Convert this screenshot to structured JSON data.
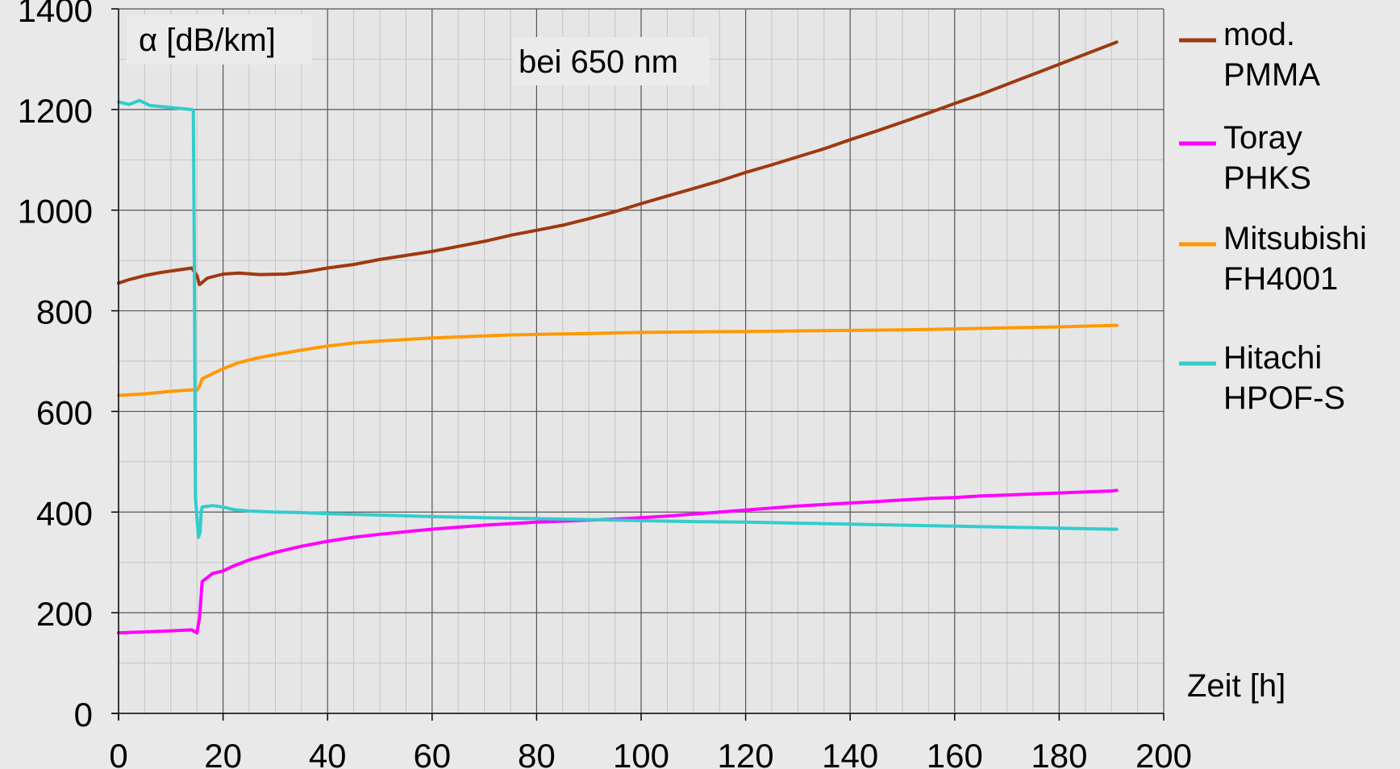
{
  "chart_data": {
    "type": "line",
    "ylabel": "α [dB/km]",
    "xlabel": "Zeit [h]",
    "annotation": "bei 650 nm",
    "xlim": [
      0,
      200
    ],
    "ylim": [
      0,
      1400
    ],
    "x_ticks": [
      0,
      20,
      40,
      60,
      80,
      100,
      120,
      140,
      160,
      180,
      200
    ],
    "x_tick_labels": [
      "0",
      "20",
      "40",
      "60",
      "80",
      "100",
      "120",
      "140",
      "160",
      "180",
      "200"
    ],
    "y_ticks": [
      0,
      200,
      400,
      600,
      800,
      1000,
      1200,
      1400
    ],
    "y_tick_labels": [
      "0",
      "200",
      "400",
      "600",
      "800",
      "1000",
      "1200",
      "1400"
    ],
    "grid": true,
    "legend_position": "right",
    "series": [
      {
        "name_lines": [
          "mod.",
          "PMMA"
        ],
        "color": "#a0380f",
        "points": [
          [
            0,
            855
          ],
          [
            2,
            862
          ],
          [
            5,
            870
          ],
          [
            8,
            876
          ],
          [
            12,
            882
          ],
          [
            14,
            885
          ],
          [
            15,
            870
          ],
          [
            15.5,
            852
          ],
          [
            17,
            865
          ],
          [
            20,
            873
          ],
          [
            23,
            875
          ],
          [
            27,
            872
          ],
          [
            32,
            873
          ],
          [
            36,
            878
          ],
          [
            40,
            885
          ],
          [
            45,
            892
          ],
          [
            50,
            902
          ],
          [
            55,
            910
          ],
          [
            60,
            918
          ],
          [
            65,
            928
          ],
          [
            70,
            938
          ],
          [
            75,
            950
          ],
          [
            80,
            960
          ],
          [
            85,
            970
          ],
          [
            90,
            983
          ],
          [
            95,
            997
          ],
          [
            100,
            1013
          ],
          [
            105,
            1028
          ],
          [
            110,
            1043
          ],
          [
            115,
            1058
          ],
          [
            120,
            1075
          ],
          [
            125,
            1090
          ],
          [
            130,
            1106
          ],
          [
            135,
            1122
          ],
          [
            140,
            1140
          ],
          [
            145,
            1157
          ],
          [
            150,
            1175
          ],
          [
            155,
            1193
          ],
          [
            160,
            1212
          ],
          [
            165,
            1230
          ],
          [
            170,
            1250
          ],
          [
            175,
            1270
          ],
          [
            180,
            1290
          ],
          [
            185,
            1310
          ],
          [
            190,
            1330
          ],
          [
            191,
            1334
          ]
        ]
      },
      {
        "name_lines": [
          "Toray",
          "PHKS"
        ],
        "color": "#ff00ff",
        "points": [
          [
            0,
            160
          ],
          [
            5,
            162
          ],
          [
            10,
            164
          ],
          [
            14,
            166
          ],
          [
            15,
            160
          ],
          [
            15.5,
            190
          ],
          [
            16,
            262
          ],
          [
            17,
            270
          ],
          [
            18,
            278
          ],
          [
            20,
            283
          ],
          [
            22,
            293
          ],
          [
            25,
            305
          ],
          [
            30,
            320
          ],
          [
            35,
            332
          ],
          [
            40,
            342
          ],
          [
            45,
            350
          ],
          [
            50,
            356
          ],
          [
            55,
            361
          ],
          [
            60,
            366
          ],
          [
            65,
            370
          ],
          [
            70,
            374
          ],
          [
            75,
            377
          ],
          [
            80,
            380
          ],
          [
            85,
            382
          ],
          [
            90,
            384
          ],
          [
            95,
            386
          ],
          [
            100,
            389
          ],
          [
            105,
            392
          ],
          [
            110,
            396
          ],
          [
            115,
            400
          ],
          [
            120,
            404
          ],
          [
            125,
            408
          ],
          [
            130,
            412
          ],
          [
            135,
            415
          ],
          [
            140,
            418
          ],
          [
            145,
            421
          ],
          [
            150,
            424
          ],
          [
            155,
            427
          ],
          [
            160,
            429
          ],
          [
            165,
            432
          ],
          [
            170,
            434
          ],
          [
            175,
            436
          ],
          [
            180,
            438
          ],
          [
            185,
            440
          ],
          [
            190,
            442
          ],
          [
            191,
            443
          ]
        ]
      },
      {
        "name_lines": [
          "Mitsubishi",
          "FH4001"
        ],
        "color": "#ff9900",
        "points": [
          [
            0,
            632
          ],
          [
            5,
            635
          ],
          [
            10,
            640
          ],
          [
            14,
            643
          ],
          [
            15,
            642
          ],
          [
            15.5,
            650
          ],
          [
            16,
            665
          ],
          [
            18,
            675
          ],
          [
            20,
            685
          ],
          [
            23,
            697
          ],
          [
            26,
            705
          ],
          [
            30,
            713
          ],
          [
            35,
            722
          ],
          [
            40,
            730
          ],
          [
            45,
            736
          ],
          [
            50,
            740
          ],
          [
            55,
            743
          ],
          [
            60,
            746
          ],
          [
            65,
            748
          ],
          [
            70,
            750
          ],
          [
            75,
            752
          ],
          [
            80,
            753
          ],
          [
            85,
            754
          ],
          [
            90,
            755
          ],
          [
            95,
            756
          ],
          [
            100,
            757
          ],
          [
            110,
            758
          ],
          [
            120,
            759
          ],
          [
            130,
            760
          ],
          [
            140,
            761
          ],
          [
            150,
            762
          ],
          [
            160,
            764
          ],
          [
            170,
            766
          ],
          [
            180,
            768
          ],
          [
            190,
            771
          ],
          [
            191,
            771
          ]
        ]
      },
      {
        "name_lines": [
          "Hitachi",
          "HPOF-S"
        ],
        "color": "#33cccc",
        "points": [
          [
            0,
            1215
          ],
          [
            2,
            1210
          ],
          [
            4,
            1218
          ],
          [
            6,
            1208
          ],
          [
            8,
            1206
          ],
          [
            10,
            1204
          ],
          [
            12,
            1202
          ],
          [
            14,
            1200
          ],
          [
            14.3,
            1198
          ],
          [
            14.5,
            900
          ],
          [
            14.7,
            430
          ],
          [
            15,
            390
          ],
          [
            15.3,
            350
          ],
          [
            15.6,
            360
          ],
          [
            15.8,
            400
          ],
          [
            16,
            410
          ],
          [
            18,
            413
          ],
          [
            20,
            410
          ],
          [
            22,
            405
          ],
          [
            25,
            402
          ],
          [
            30,
            400
          ],
          [
            35,
            399
          ],
          [
            40,
            397
          ],
          [
            50,
            394
          ],
          [
            60,
            391
          ],
          [
            70,
            389
          ],
          [
            80,
            387
          ],
          [
            90,
            385
          ],
          [
            100,
            383
          ],
          [
            110,
            381
          ],
          [
            120,
            380
          ],
          [
            130,
            378
          ],
          [
            140,
            376
          ],
          [
            150,
            374
          ],
          [
            160,
            372
          ],
          [
            170,
            370
          ],
          [
            180,
            368
          ],
          [
            190,
            366
          ],
          [
            191,
            366
          ]
        ]
      }
    ]
  }
}
